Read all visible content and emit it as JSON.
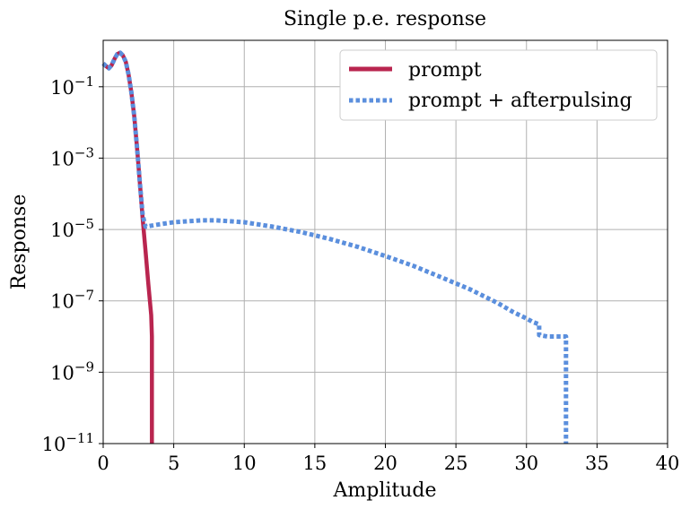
{
  "chart_data": {
    "type": "line",
    "title": "Single p.e. response",
    "xlabel": "Amplitude",
    "ylabel": "Response",
    "xlim": [
      0,
      40
    ],
    "ylim": [
      1e-11,
      2
    ],
    "yscale": "log",
    "grid": true,
    "legend_position": "top-right",
    "x_ticks": [
      0,
      5,
      10,
      15,
      20,
      25,
      30,
      35,
      40
    ],
    "y_ticks": [
      {
        "exp": -11,
        "base": "10",
        "sup": "−11"
      },
      {
        "exp": -9,
        "base": "10",
        "sup": "−9"
      },
      {
        "exp": -7,
        "base": "10",
        "sup": "−7"
      },
      {
        "exp": -5,
        "base": "10",
        "sup": "−5"
      },
      {
        "exp": -3,
        "base": "10",
        "sup": "−3"
      },
      {
        "exp": -1,
        "base": "10",
        "sup": "−1"
      }
    ],
    "series": [
      {
        "name": "prompt",
        "color": "#b9254f",
        "style": "solid",
        "points": [
          [
            0.0,
            0.45
          ],
          [
            0.2,
            0.38
          ],
          [
            0.4,
            0.33
          ],
          [
            0.6,
            0.4
          ],
          [
            0.8,
            0.6
          ],
          [
            1.0,
            0.82
          ],
          [
            1.2,
            0.9
          ],
          [
            1.4,
            0.75
          ],
          [
            1.6,
            0.5
          ],
          [
            1.8,
            0.22
          ],
          [
            2.0,
            0.07
          ],
          [
            2.2,
            0.015
          ],
          [
            2.4,
            0.002
          ],
          [
            2.6,
            0.0002
          ],
          [
            2.8,
            2e-05
          ],
          [
            3.0,
            2.5e-06
          ],
          [
            3.2,
            3e-07
          ],
          [
            3.4,
            4e-08
          ],
          [
            3.45,
            1e-08
          ],
          [
            3.45,
            1e-11
          ]
        ]
      },
      {
        "name": "prompt + afterpulsing",
        "color": "#5b8fdd",
        "style": "dotted",
        "points": [
          [
            0.0,
            0.45
          ],
          [
            0.2,
            0.38
          ],
          [
            0.4,
            0.33
          ],
          [
            0.6,
            0.4
          ],
          [
            0.8,
            0.6
          ],
          [
            1.0,
            0.82
          ],
          [
            1.2,
            0.9
          ],
          [
            1.4,
            0.75
          ],
          [
            1.6,
            0.5
          ],
          [
            1.8,
            0.22
          ],
          [
            2.0,
            0.07
          ],
          [
            2.2,
            0.015
          ],
          [
            2.4,
            0.002
          ],
          [
            2.6,
            0.0002
          ],
          [
            2.8,
            2.5e-05
          ],
          [
            3.0,
            1.2e-05
          ],
          [
            4,
            1.4e-05
          ],
          [
            5,
            1.6e-05
          ],
          [
            6,
            1.7e-05
          ],
          [
            7,
            1.8e-05
          ],
          [
            8,
            1.8e-05
          ],
          [
            9,
            1.7e-05
          ],
          [
            10,
            1.6e-05
          ],
          [
            12,
            1.2e-05
          ],
          [
            14,
            8.5e-06
          ],
          [
            16,
            5.5e-06
          ],
          [
            18,
            3.3e-06
          ],
          [
            20,
            1.8e-06
          ],
          [
            22,
            9.5e-07
          ],
          [
            24,
            4.5e-07
          ],
          [
            26,
            2.1e-07
          ],
          [
            28,
            8.5e-08
          ],
          [
            29,
            5e-08
          ],
          [
            29.5,
            4e-08
          ],
          [
            30.0,
            3.2e-08
          ],
          [
            30.5,
            2.5e-08
          ],
          [
            30.9,
            2.2e-08
          ],
          [
            30.9,
            1.1e-08
          ],
          [
            31.5,
            1e-08
          ],
          [
            32.3,
            1e-08
          ],
          [
            32.8,
            1e-08
          ],
          [
            32.8,
            1e-11
          ]
        ]
      }
    ]
  }
}
